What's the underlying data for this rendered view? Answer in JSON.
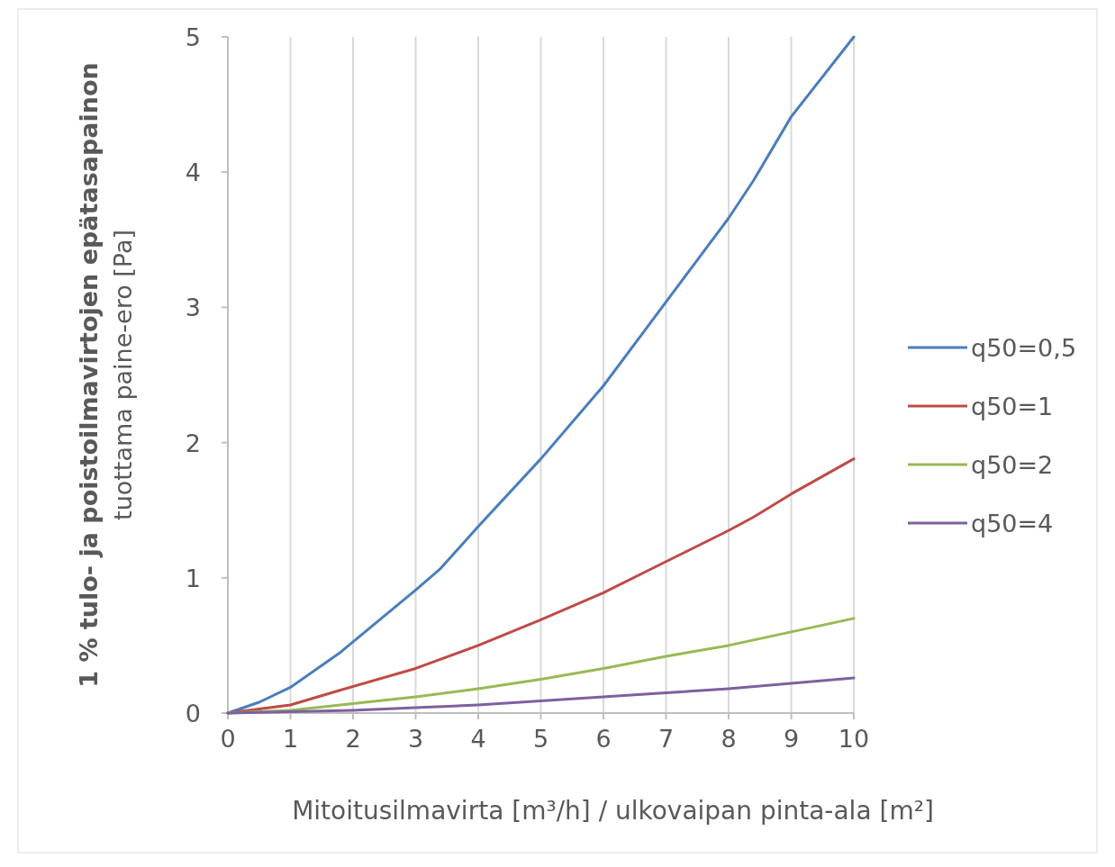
{
  "chart_data": {
    "type": "line",
    "xlabel": "Mitoitusilmavirta [m³/h] / ulkovaipan pinta-ala [m²]",
    "ylabel": "1 % tulo- ja poistoilmavirtojen epätasapainon\ntuottama paine-ero [Pa]",
    "xlim": [
      0,
      10
    ],
    "xticks": [
      0,
      1,
      2,
      3,
      4,
      5,
      6,
      7,
      8,
      9,
      10
    ],
    "ylim": [
      0,
      5
    ],
    "yticks": [
      0,
      1,
      2,
      3,
      4,
      5
    ],
    "grid": "x",
    "legend": "right",
    "marker": "none",
    "line_style": "solid",
    "series": [
      {
        "name": "q50=0,5",
        "color": "#4a7ebb",
        "x": [
          0,
          0.5,
          1,
          1.8,
          2.4,
          3,
          3.4,
          4,
          5,
          6,
          7,
          8,
          8.4,
          9,
          10
        ],
        "values": [
          0,
          0.08,
          0.19,
          0.45,
          0.68,
          0.91,
          1.07,
          1.38,
          1.88,
          2.42,
          3.04,
          3.66,
          3.94,
          4.41,
          5.0
        ]
      },
      {
        "name": "q50=1",
        "color": "#be4b48",
        "x": [
          0,
          1,
          1.8,
          3,
          4,
          5,
          6,
          7,
          8,
          8.4,
          9,
          10
        ],
        "values": [
          0,
          0.06,
          0.17,
          0.33,
          0.5,
          0.69,
          0.89,
          1.12,
          1.35,
          1.45,
          1.62,
          1.88
        ]
      },
      {
        "name": "q50=2",
        "color": "#98b954",
        "x": [
          0,
          1,
          2,
          3,
          4,
          5,
          6,
          7,
          8,
          9,
          10
        ],
        "values": [
          0,
          0.02,
          0.07,
          0.12,
          0.18,
          0.25,
          0.33,
          0.42,
          0.5,
          0.6,
          0.7
        ]
      },
      {
        "name": "q50=4",
        "color": "#7d60a0",
        "x": [
          0,
          1,
          2,
          3,
          4,
          5,
          6,
          7,
          8,
          9,
          10
        ],
        "values": [
          0,
          0.01,
          0.02,
          0.04,
          0.06,
          0.09,
          0.12,
          0.15,
          0.18,
          0.22,
          0.26
        ]
      }
    ]
  }
}
